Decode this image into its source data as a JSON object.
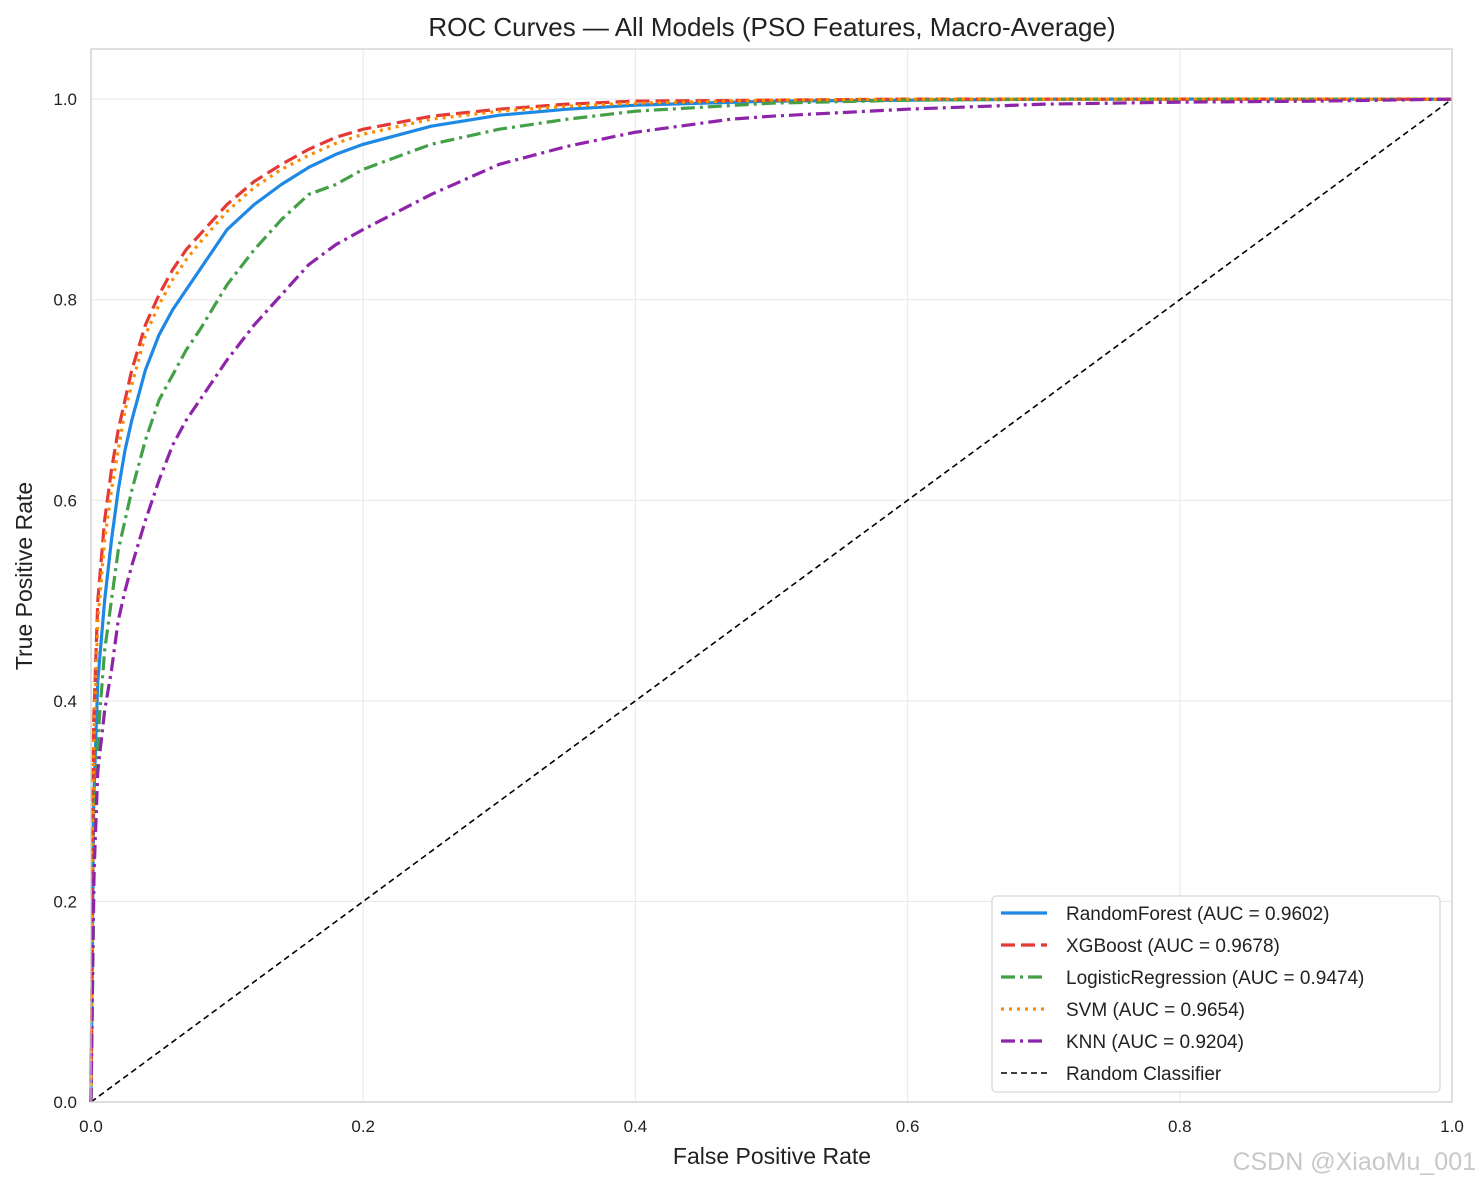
{
  "chart_data": {
    "type": "line",
    "title": "ROC Curves — All Models (PSO Features, Macro-Average)",
    "xlabel": "False Positive Rate",
    "ylabel": "True Positive Rate",
    "xlim": [
      0,
      1
    ],
    "ylim": [
      0,
      1.05
    ],
    "xticks": [
      "0.0",
      "0.2",
      "0.4",
      "0.6",
      "0.8",
      "1.0"
    ],
    "yticks": [
      "0.0",
      "0.2",
      "0.4",
      "0.6",
      "0.8",
      "1.0"
    ],
    "grid": true,
    "legend_position": "bottom-right",
    "series": [
      {
        "name": "RandomForest  (AUC = 0.9602)",
        "color": "#1e88e5",
        "style": "solid",
        "x": [
          0,
          0.002,
          0.005,
          0.01,
          0.015,
          0.02,
          0.025,
          0.03,
          0.04,
          0.05,
          0.06,
          0.07,
          0.08,
          0.1,
          0.12,
          0.14,
          0.16,
          0.18,
          0.2,
          0.25,
          0.3,
          0.35,
          0.4,
          0.5,
          0.6,
          0.7,
          0.8,
          0.9,
          1.0
        ],
        "y": [
          0,
          0.3,
          0.42,
          0.5,
          0.56,
          0.61,
          0.65,
          0.68,
          0.73,
          0.765,
          0.79,
          0.81,
          0.83,
          0.87,
          0.895,
          0.915,
          0.932,
          0.945,
          0.955,
          0.973,
          0.984,
          0.99,
          0.994,
          0.998,
          0.999,
          1.0,
          1.0,
          1.0,
          1.0
        ]
      },
      {
        "name": "XGBoost  (AUC = 0.9678)",
        "color": "#e53935",
        "style": "dashed",
        "x": [
          0,
          0.002,
          0.005,
          0.01,
          0.015,
          0.02,
          0.025,
          0.03,
          0.04,
          0.05,
          0.06,
          0.07,
          0.08,
          0.1,
          0.12,
          0.14,
          0.16,
          0.18,
          0.2,
          0.25,
          0.3,
          0.35,
          0.4,
          0.5,
          0.6,
          0.7,
          0.8,
          0.9,
          1.0
        ],
        "y": [
          0,
          0.38,
          0.5,
          0.58,
          0.63,
          0.67,
          0.7,
          0.73,
          0.775,
          0.805,
          0.83,
          0.85,
          0.865,
          0.895,
          0.918,
          0.935,
          0.95,
          0.962,
          0.97,
          0.983,
          0.99,
          0.995,
          0.998,
          0.999,
          1.0,
          1.0,
          1.0,
          1.0,
          1.0
        ]
      },
      {
        "name": "LogisticRegression  (AUC = 0.9474)",
        "color": "#43a047",
        "style": "dashdot",
        "x": [
          0,
          0.003,
          0.006,
          0.01,
          0.015,
          0.02,
          0.025,
          0.03,
          0.04,
          0.05,
          0.06,
          0.07,
          0.08,
          0.1,
          0.12,
          0.14,
          0.16,
          0.18,
          0.2,
          0.25,
          0.3,
          0.35,
          0.4,
          0.5,
          0.6,
          0.7,
          0.8,
          0.9,
          1.0
        ],
        "y": [
          0,
          0.3,
          0.38,
          0.45,
          0.5,
          0.55,
          0.58,
          0.61,
          0.66,
          0.7,
          0.725,
          0.75,
          0.77,
          0.815,
          0.85,
          0.88,
          0.905,
          0.915,
          0.93,
          0.955,
          0.97,
          0.98,
          0.988,
          0.996,
          0.999,
          1.0,
          1.0,
          1.0,
          1.0
        ]
      },
      {
        "name": "SVM  (AUC = 0.9654)",
        "color": "#fb8c00",
        "style": "dotted",
        "x": [
          0,
          0.002,
          0.005,
          0.01,
          0.015,
          0.02,
          0.025,
          0.03,
          0.04,
          0.05,
          0.06,
          0.07,
          0.08,
          0.1,
          0.12,
          0.14,
          0.16,
          0.18,
          0.2,
          0.25,
          0.3,
          0.35,
          0.4,
          0.5,
          0.6,
          0.7,
          0.8,
          0.9,
          1.0
        ],
        "y": [
          0,
          0.36,
          0.48,
          0.56,
          0.61,
          0.65,
          0.69,
          0.715,
          0.765,
          0.795,
          0.82,
          0.84,
          0.857,
          0.888,
          0.912,
          0.93,
          0.944,
          0.956,
          0.965,
          0.98,
          0.988,
          0.993,
          0.996,
          0.999,
          1.0,
          1.0,
          1.0,
          1.0,
          1.0
        ]
      },
      {
        "name": "KNN  (AUC = 0.9204)",
        "color": "#8e24aa",
        "style": "dashdot",
        "x": [
          0,
          0.002,
          0.005,
          0.01,
          0.015,
          0.02,
          0.025,
          0.03,
          0.04,
          0.05,
          0.06,
          0.07,
          0.08,
          0.1,
          0.12,
          0.14,
          0.16,
          0.18,
          0.2,
          0.25,
          0.3,
          0.35,
          0.4,
          0.47,
          0.5,
          0.6,
          0.7,
          0.8,
          0.9,
          1.0
        ],
        "y": [
          0,
          0.22,
          0.33,
          0.39,
          0.43,
          0.48,
          0.51,
          0.535,
          0.58,
          0.62,
          0.655,
          0.68,
          0.7,
          0.74,
          0.775,
          0.805,
          0.835,
          0.855,
          0.87,
          0.905,
          0.935,
          0.953,
          0.967,
          0.98,
          0.983,
          0.99,
          0.995,
          0.997,
          0.998,
          1.0
        ]
      }
    ],
    "reference_line": {
      "name": "Random Classifier",
      "color": "#000000",
      "style": "dashed",
      "x": [
        0,
        1
      ],
      "y": [
        0,
        1
      ]
    }
  },
  "watermark": "CSDN @XiaoMu_001"
}
